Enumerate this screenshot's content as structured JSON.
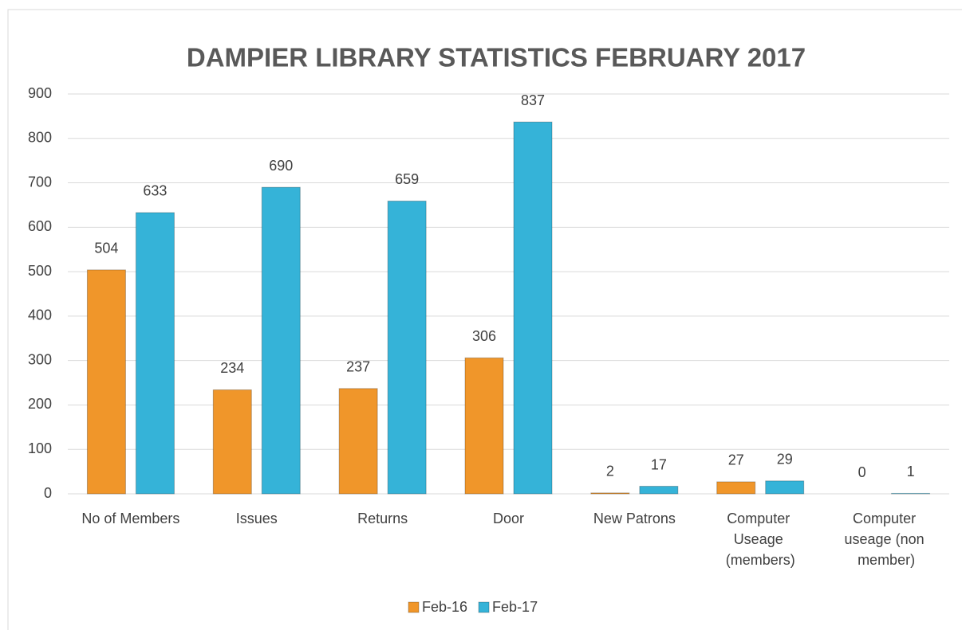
{
  "chart_data": {
    "type": "bar",
    "title": "DAMPIER LIBRARY STATISTICS FEBRUARY 2017",
    "categories": [
      "No of Members",
      "Issues",
      "Returns",
      "Door",
      "New Patrons",
      "Computer Useage (members)",
      "Computer useage (non member)"
    ],
    "series": [
      {
        "name": "Feb-16",
        "color": "#f0962a",
        "values": [
          504,
          234,
          237,
          306,
          2,
          27,
          0
        ]
      },
      {
        "name": "Feb-17",
        "color": "#35b3d8",
        "values": [
          633,
          690,
          659,
          837,
          17,
          29,
          1
        ]
      }
    ],
    "ylim": [
      0,
      900
    ],
    "yticks": [
      0,
      100,
      200,
      300,
      400,
      500,
      600,
      700,
      800,
      900
    ],
    "grid": true,
    "legend": "bottom"
  }
}
